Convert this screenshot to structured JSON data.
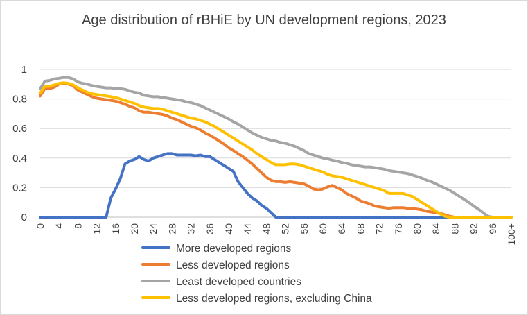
{
  "chart_data": {
    "type": "line",
    "title": "Age distribution of rBHiE by UN development regions, 2023",
    "xlabel": "",
    "ylabel": "",
    "ylim": [
      0,
      1
    ],
    "yticks": [
      "0",
      "0.2",
      "0.4",
      "0.6",
      "0.8",
      "1"
    ],
    "x_tick_labels": [
      "0",
      "4",
      "8",
      "12",
      "16",
      "20",
      "24",
      "28",
      "32",
      "36",
      "40",
      "44",
      "48",
      "52",
      "56",
      "60",
      "64",
      "68",
      "72",
      "76",
      "80",
      "84",
      "88",
      "92",
      "96",
      "100+"
    ],
    "grid": true,
    "legend_position": "bottom",
    "x": [
      0,
      1,
      2,
      3,
      4,
      5,
      6,
      7,
      8,
      9,
      10,
      11,
      12,
      13,
      14,
      15,
      16,
      17,
      18,
      19,
      20,
      21,
      22,
      23,
      24,
      25,
      26,
      27,
      28,
      29,
      30,
      31,
      32,
      33,
      34,
      35,
      36,
      37,
      38,
      39,
      40,
      41,
      42,
      43,
      44,
      45,
      46,
      47,
      48,
      49,
      50,
      51,
      52,
      53,
      54,
      55,
      56,
      57,
      58,
      59,
      60,
      61,
      62,
      63,
      64,
      65,
      66,
      67,
      68,
      69,
      70,
      71,
      72,
      73,
      74,
      75,
      76,
      77,
      78,
      79,
      80,
      81,
      82,
      83,
      84,
      85,
      86,
      87,
      88,
      89,
      90,
      91,
      92,
      93,
      94,
      95,
      96,
      97,
      98,
      99,
      100
    ],
    "series": [
      {
        "name": "More developed regions",
        "color": "#4472c4",
        "values": [
          0,
          0,
          0,
          0,
          0,
          0,
          0,
          0,
          0,
          0,
          0,
          0,
          0,
          0,
          0,
          0.13,
          0.19,
          0.26,
          0.36,
          0.38,
          0.39,
          0.41,
          0.39,
          0.38,
          0.4,
          0.41,
          0.42,
          0.43,
          0.43,
          0.42,
          0.42,
          0.42,
          0.42,
          0.415,
          0.42,
          0.41,
          0.41,
          0.39,
          0.37,
          0.35,
          0.33,
          0.31,
          0.24,
          0.2,
          0.16,
          0.13,
          0.11,
          0.08,
          0.06,
          0.03,
          0,
          0,
          0,
          0,
          0,
          0,
          0,
          0,
          0,
          0,
          0,
          0,
          0,
          0,
          0,
          0,
          0,
          0,
          0,
          0,
          0,
          0,
          0,
          0,
          0,
          0,
          0,
          0,
          0,
          0,
          0,
          0,
          0,
          0,
          0,
          0,
          0,
          0,
          0,
          0,
          0,
          0,
          0,
          0,
          0,
          0,
          0,
          0,
          0,
          0,
          0
        ]
      },
      {
        "name": "Less developed regions",
        "color": "#ed7d31",
        "values": [
          0.82,
          0.87,
          0.87,
          0.88,
          0.9,
          0.905,
          0.9,
          0.89,
          0.86,
          0.845,
          0.83,
          0.815,
          0.805,
          0.8,
          0.795,
          0.79,
          0.785,
          0.775,
          0.765,
          0.75,
          0.74,
          0.72,
          0.71,
          0.71,
          0.705,
          0.7,
          0.695,
          0.685,
          0.67,
          0.66,
          0.645,
          0.63,
          0.615,
          0.605,
          0.59,
          0.57,
          0.555,
          0.535,
          0.515,
          0.495,
          0.47,
          0.45,
          0.43,
          0.41,
          0.385,
          0.36,
          0.33,
          0.3,
          0.27,
          0.25,
          0.24,
          0.24,
          0.235,
          0.24,
          0.235,
          0.23,
          0.225,
          0.21,
          0.19,
          0.185,
          0.19,
          0.205,
          0.215,
          0.2,
          0.185,
          0.16,
          0.145,
          0.13,
          0.11,
          0.1,
          0.09,
          0.075,
          0.07,
          0.065,
          0.06,
          0.065,
          0.065,
          0.065,
          0.06,
          0.06,
          0.055,
          0.05,
          0.04,
          0.035,
          0.03,
          0.025,
          0.015,
          0.005,
          0,
          0,
          0,
          0,
          0,
          0,
          0,
          0,
          0,
          0,
          0,
          0,
          0
        ]
      },
      {
        "name": "Least developed countries",
        "color": "#a5a5a5",
        "values": [
          0.87,
          0.92,
          0.925,
          0.935,
          0.94,
          0.945,
          0.945,
          0.935,
          0.915,
          0.905,
          0.9,
          0.89,
          0.885,
          0.88,
          0.875,
          0.875,
          0.87,
          0.87,
          0.865,
          0.855,
          0.845,
          0.84,
          0.825,
          0.82,
          0.815,
          0.815,
          0.81,
          0.805,
          0.8,
          0.795,
          0.79,
          0.78,
          0.775,
          0.765,
          0.755,
          0.74,
          0.725,
          0.71,
          0.695,
          0.68,
          0.665,
          0.645,
          0.63,
          0.61,
          0.59,
          0.57,
          0.555,
          0.54,
          0.53,
          0.52,
          0.515,
          0.505,
          0.5,
          0.49,
          0.48,
          0.465,
          0.45,
          0.43,
          0.42,
          0.41,
          0.4,
          0.395,
          0.385,
          0.38,
          0.37,
          0.365,
          0.355,
          0.35,
          0.345,
          0.34,
          0.34,
          0.335,
          0.33,
          0.325,
          0.315,
          0.31,
          0.305,
          0.3,
          0.295,
          0.285,
          0.275,
          0.265,
          0.25,
          0.24,
          0.225,
          0.21,
          0.195,
          0.18,
          0.16,
          0.14,
          0.12,
          0.1,
          0.075,
          0.055,
          0.03,
          0.005,
          0,
          0,
          0,
          0,
          0
        ]
      },
      {
        "name": "Less developed regions, excluding China",
        "color": "#ffc000",
        "values": [
          0.84,
          0.885,
          0.885,
          0.895,
          0.905,
          0.91,
          0.905,
          0.895,
          0.875,
          0.86,
          0.845,
          0.835,
          0.83,
          0.825,
          0.82,
          0.815,
          0.81,
          0.8,
          0.79,
          0.78,
          0.77,
          0.755,
          0.745,
          0.74,
          0.735,
          0.735,
          0.73,
          0.72,
          0.71,
          0.7,
          0.69,
          0.68,
          0.67,
          0.665,
          0.655,
          0.645,
          0.63,
          0.615,
          0.595,
          0.575,
          0.555,
          0.535,
          0.515,
          0.495,
          0.475,
          0.455,
          0.43,
          0.41,
          0.39,
          0.37,
          0.355,
          0.355,
          0.355,
          0.36,
          0.36,
          0.355,
          0.345,
          0.335,
          0.325,
          0.315,
          0.305,
          0.29,
          0.28,
          0.275,
          0.27,
          0.26,
          0.25,
          0.24,
          0.23,
          0.22,
          0.21,
          0.2,
          0.19,
          0.18,
          0.16,
          0.16,
          0.16,
          0.16,
          0.15,
          0.14,
          0.12,
          0.1,
          0.08,
          0.06,
          0.04,
          0.02,
          0.005,
          0,
          0,
          0,
          0,
          0,
          0,
          0,
          0,
          0,
          0,
          0,
          0,
          0,
          0
        ]
      }
    ]
  }
}
